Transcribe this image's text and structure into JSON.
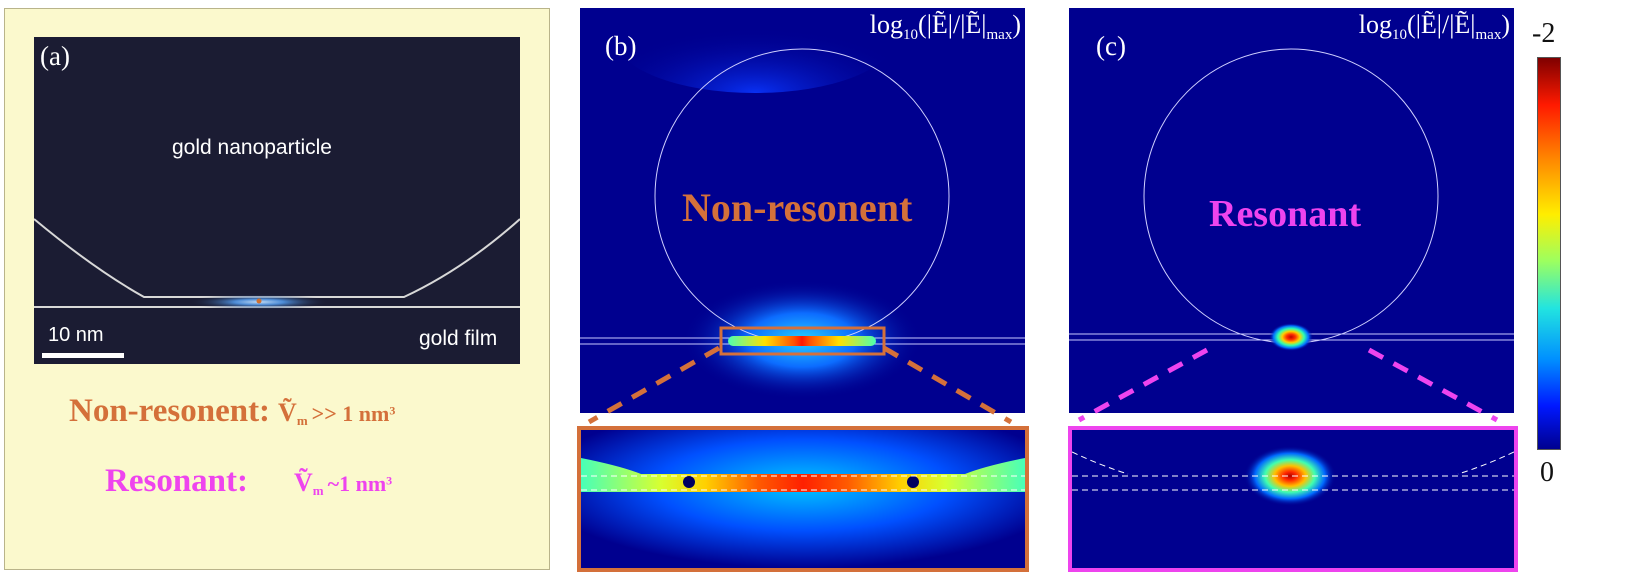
{
  "panel_a": {
    "letter": "(a)",
    "particle_label": "gold nanoparticle",
    "film_label": "gold film",
    "scale_bar_label": "10 nm",
    "formula_nonres": {
      "name": "Non-resonent:",
      "expr": "Ṽ",
      "sub": "m",
      "rest": ">> 1 nm",
      "sup": "3"
    },
    "formula_res": {
      "name": "Resonant:",
      "expr": "Ṽ",
      "sub": "m",
      "rest": "~1 nm",
      "sup": "3"
    }
  },
  "panel_b": {
    "letter": "(b)",
    "title_main": "log",
    "title_sub": "10",
    "title_rest": "(|Ẽ|/|Ẽ|",
    "title_max": "max",
    "title_end": ")",
    "state_label": "Non-resonent"
  },
  "panel_c": {
    "letter": "(c)",
    "title_main": "log",
    "title_sub": "10",
    "title_rest": "(|Ẽ|/|Ẽ|",
    "title_max": "max",
    "title_end": ")",
    "state_label": "Resonant"
  },
  "colorbar": {
    "top_label": "-2",
    "bottom_label": "0"
  },
  "colors": {
    "nonres": "#d4703a",
    "res": "#ee44ee",
    "field_bg": "#00008f",
    "panel_a_bg": "#fbf9cd"
  }
}
